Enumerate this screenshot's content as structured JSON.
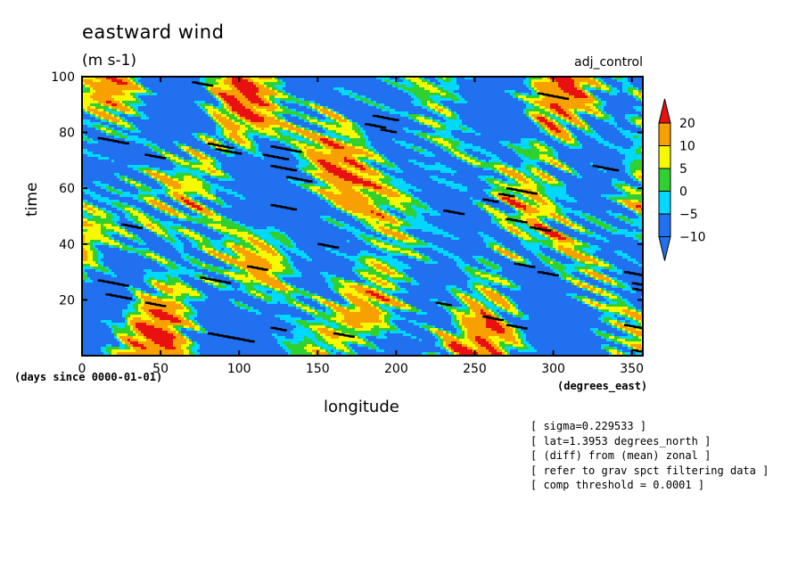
{
  "chart_data": {
    "type": "heatmap",
    "title": "eastward wind",
    "units": "(m s-1)",
    "run_label": "adj_control",
    "xlabel": "longitude",
    "x_units": "(degrees_east)",
    "ylabel": "time",
    "y_units": "(days since 0000-01-01)",
    "xlim": [
      0,
      357
    ],
    "ylim": [
      0,
      100
    ],
    "x_ticks": [
      0,
      50,
      100,
      150,
      200,
      250,
      300,
      350
    ],
    "y_ticks": [
      20,
      40,
      60,
      80,
      100
    ],
    "colorbar": {
      "levels": [
        -10,
        -5,
        0,
        5,
        10,
        20
      ],
      "colors": [
        "#2070f0",
        "#00d8ff",
        "#30d030",
        "#f8f800",
        "#f8a000",
        "#e81010"
      ],
      "below_color": "#2070f0",
      "above_color": "#e81010",
      "extend": "both"
    },
    "annotations": [
      "[ sigma=0.229533 ]",
      "[ lat=1.3953 degrees_north ]",
      "[ (diff) from (mean) zonal ]",
      "[ refer to grav spct filtering data ]",
      "[ comp threshold = 0.0001 ]"
    ]
  }
}
